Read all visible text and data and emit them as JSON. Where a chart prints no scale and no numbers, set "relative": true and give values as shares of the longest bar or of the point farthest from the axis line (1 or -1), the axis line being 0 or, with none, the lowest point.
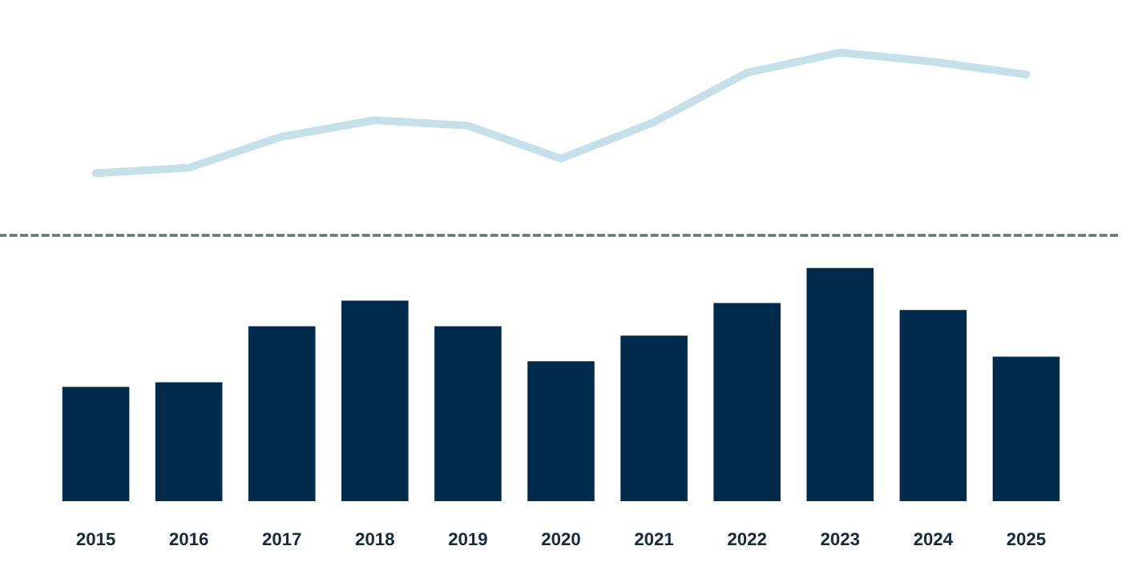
{
  "chart_data": [
    {
      "type": "line",
      "relative": true,
      "categories": [
        "2015",
        "2016",
        "2017",
        "2018",
        "2019",
        "2020",
        "2021",
        "2022",
        "2023",
        "2024",
        "2025"
      ],
      "tick_labels": false,
      "grid": false,
      "legend": false,
      "marker": "none",
      "line_style": "solid",
      "series": [
        {
          "color": "#c5e0e8",
          "values": [
            0.34,
            0.37,
            0.54,
            0.63,
            0.6,
            0.42,
            0.62,
            0.89,
            1,
            0.95,
            0.88
          ]
        }
      ]
    },
    {
      "type": "bar",
      "relative": true,
      "categories": [
        "2015",
        "2016",
        "2017",
        "2018",
        "2019",
        "2020",
        "2021",
        "2022",
        "2023",
        "2024",
        "2025"
      ],
      "tick_labels": "x",
      "grid": false,
      "legend": false,
      "series": [
        {
          "color": "#002b4d",
          "values": [
            0.49,
            0.51,
            0.75,
            0.86,
            0.75,
            0.6,
            0.71,
            0.85,
            1,
            0.82,
            0.62
          ]
        }
      ]
    }
  ]
}
